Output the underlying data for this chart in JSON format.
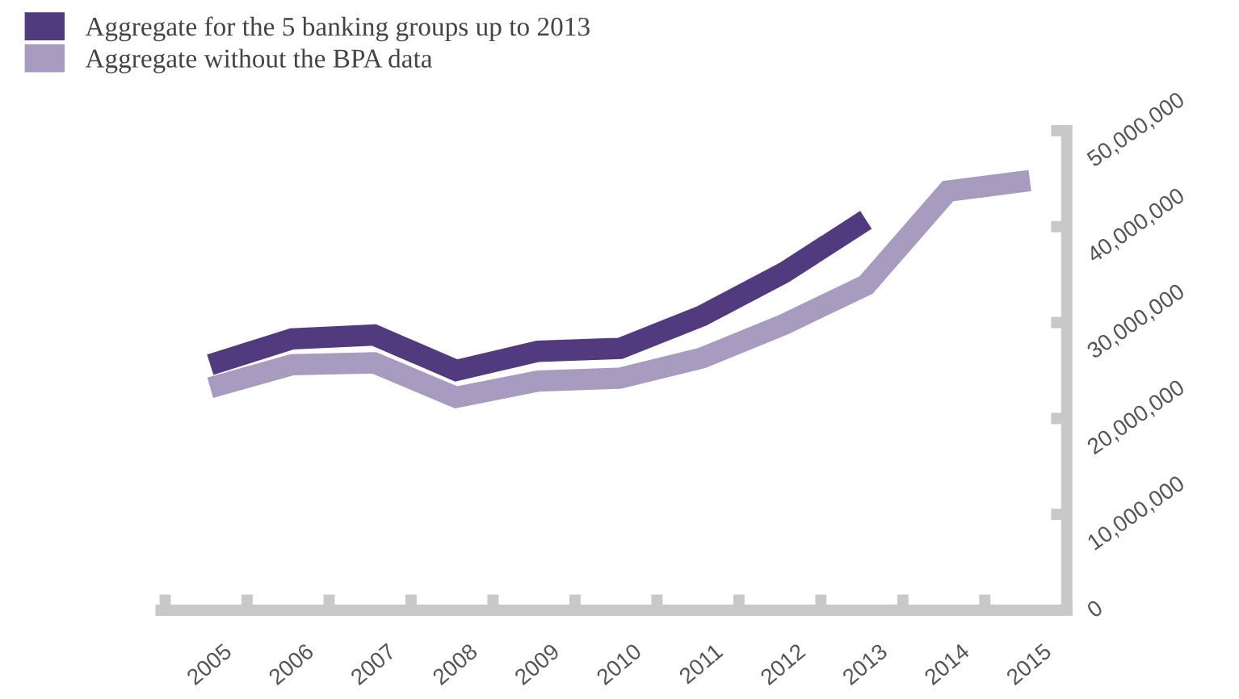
{
  "chart_data": {
    "type": "line",
    "categories": [
      "2005",
      "2006",
      "2007",
      "2008",
      "2009",
      "2010",
      "2011",
      "2012",
      "2013",
      "2014",
      "2015"
    ],
    "series": [
      {
        "name": "Aggregate for the 5 banking groups up to 2013",
        "color": "#523a7e",
        "values": [
          25600000,
          28300000,
          28700000,
          25000000,
          27000000,
          27300000,
          30700000,
          35200000,
          40700000,
          null,
          null
        ]
      },
      {
        "name": "Aggregate without the BPA data",
        "color": "#a89bc0",
        "values": [
          23200000,
          25600000,
          25800000,
          22200000,
          23900000,
          24200000,
          26300000,
          29800000,
          33900000,
          43700000,
          44800000
        ]
      }
    ],
    "ylim": [
      0,
      50000000
    ],
    "yticks": [
      0,
      {
        "value": 10000000,
        "label": "10,000,000"
      },
      {
        "value": 20000000,
        "label": "20,000,000"
      },
      {
        "value": 30000000,
        "label": "30,000,000"
      },
      {
        "value": 40000000,
        "label": "40,000,000"
      },
      {
        "value": 50000000,
        "label": "50,000,000"
      }
    ],
    "grid": false,
    "legend": "top left",
    "marker": "none",
    "line_style": "solid"
  }
}
